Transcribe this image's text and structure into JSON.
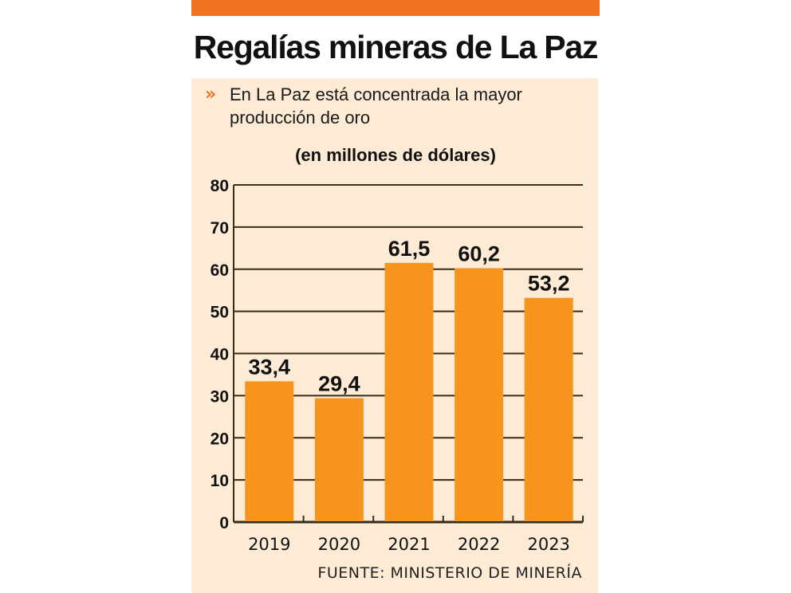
{
  "header": {
    "title": "Regalías mineras de La Paz",
    "subtitle_bullet": "»",
    "subtitle": "En La Paz está concentrada la mayor producción de oro",
    "accent_color": "#f07222"
  },
  "footer": {
    "source": "FUENTE: MINISTERIO DE MINERÍA"
  },
  "chart_data": {
    "type": "bar",
    "title": "Regalías mineras de La Paz",
    "subtitle": "(en millones de dólares)",
    "xlabel": "",
    "ylabel": "",
    "categories": [
      "2019",
      "2020",
      "2021",
      "2022",
      "2023"
    ],
    "values": [
      33.4,
      29.4,
      61.5,
      60.2,
      53.2
    ],
    "value_labels": [
      "33,4",
      "29,4",
      "61,5",
      "60,2",
      "53,2"
    ],
    "ylim": [
      0,
      80
    ],
    "yticks": [
      0,
      10,
      20,
      30,
      40,
      50,
      60,
      70,
      80
    ],
    "ytick_labels": [
      "0",
      "10",
      "20",
      "30",
      "40",
      "50",
      "60",
      "70",
      "80"
    ],
    "grid": true,
    "legend": "none",
    "bar_color": "#f7941d",
    "background_color": "#fdebd5"
  }
}
